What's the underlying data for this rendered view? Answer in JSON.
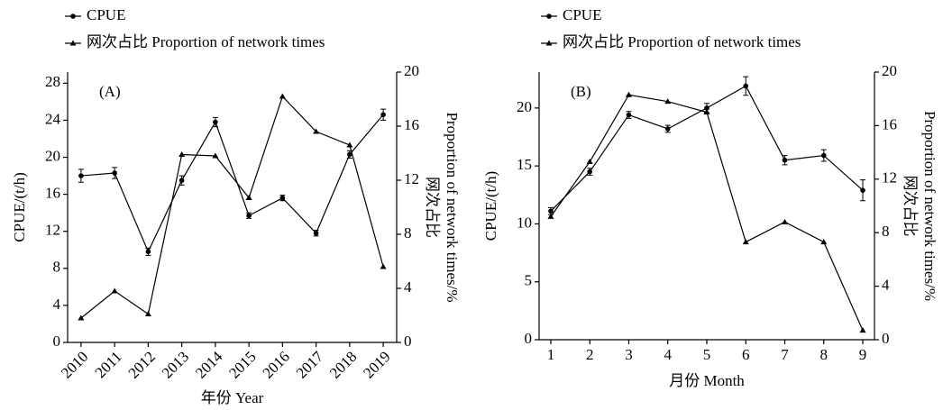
{
  "chart_data": [
    {
      "type": "line",
      "panel_label": "(A)",
      "xlabel": "年份 Year",
      "ylabel": "CPUE/(t/h)",
      "y2label": [
        "网次占比",
        "Proportion of network times/%"
      ],
      "x": [
        2010,
        2011,
        2012,
        2013,
        2014,
        2015,
        2016,
        2017,
        2018,
        2019
      ],
      "xlim": [
        2009.6,
        2019.4
      ],
      "xticks": [
        2010,
        2011,
        2012,
        2013,
        2014,
        2015,
        2016,
        2017,
        2018,
        2019
      ],
      "ylim": [
        0,
        29.2
      ],
      "yticks": [
        0,
        4,
        8,
        12,
        16,
        20,
        24,
        28
      ],
      "y2lim": [
        0,
        20
      ],
      "y2ticks": [
        0,
        4,
        8,
        12,
        16,
        20
      ],
      "series": [
        {
          "name": "CPUE",
          "color": "#000000",
          "marker": "circle",
          "values": [
            18.0,
            18.3,
            9.8,
            17.5,
            23.8,
            13.7,
            15.6,
            11.8,
            20.3,
            24.6
          ],
          "errors": [
            0.7,
            0.6,
            0.4,
            0.5,
            0.5,
            0.3,
            0.3,
            0.3,
            0.4,
            0.6
          ]
        },
        {
          "name": "网次占比 Proportion of network times",
          "color": "#000000",
          "marker": "triangle",
          "axis": "y2",
          "values": [
            1.8,
            3.8,
            2.1,
            13.9,
            13.8,
            10.7,
            18.2,
            15.6,
            14.6,
            5.6
          ]
        }
      ]
    },
    {
      "type": "line",
      "panel_label": "(B)",
      "xlabel": "月份 Month",
      "ylabel": "CPUE/(t/h)",
      "y2label": [
        "网次占比",
        "Proportion of network times/%"
      ],
      "x": [
        1,
        2,
        3,
        4,
        5,
        6,
        7,
        8,
        9
      ],
      "xlim": [
        0.7,
        9.3
      ],
      "xticks": [
        1,
        2,
        3,
        4,
        5,
        6,
        7,
        8,
        9
      ],
      "ylim": [
        0,
        23.1
      ],
      "yticks": [
        0,
        5,
        10,
        15,
        20
      ],
      "y2lim": [
        0,
        20
      ],
      "y2ticks": [
        0,
        4,
        8,
        12,
        16,
        20
      ],
      "series": [
        {
          "name": "CPUE",
          "color": "#000000",
          "marker": "circle",
          "values": [
            11.1,
            14.5,
            19.4,
            18.2,
            20.0,
            21.9,
            15.5,
            15.9,
            12.9
          ],
          "errors": [
            0.3,
            0.3,
            0.3,
            0.3,
            0.4,
            0.8,
            0.4,
            0.5,
            0.9
          ]
        },
        {
          "name": "网次占比 Proportion of network times",
          "color": "#000000",
          "marker": "triangle",
          "axis": "y2",
          "values": [
            9.2,
            13.3,
            18.3,
            17.8,
            17.0,
            7.3,
            8.8,
            7.3,
            0.7
          ]
        }
      ]
    }
  ]
}
